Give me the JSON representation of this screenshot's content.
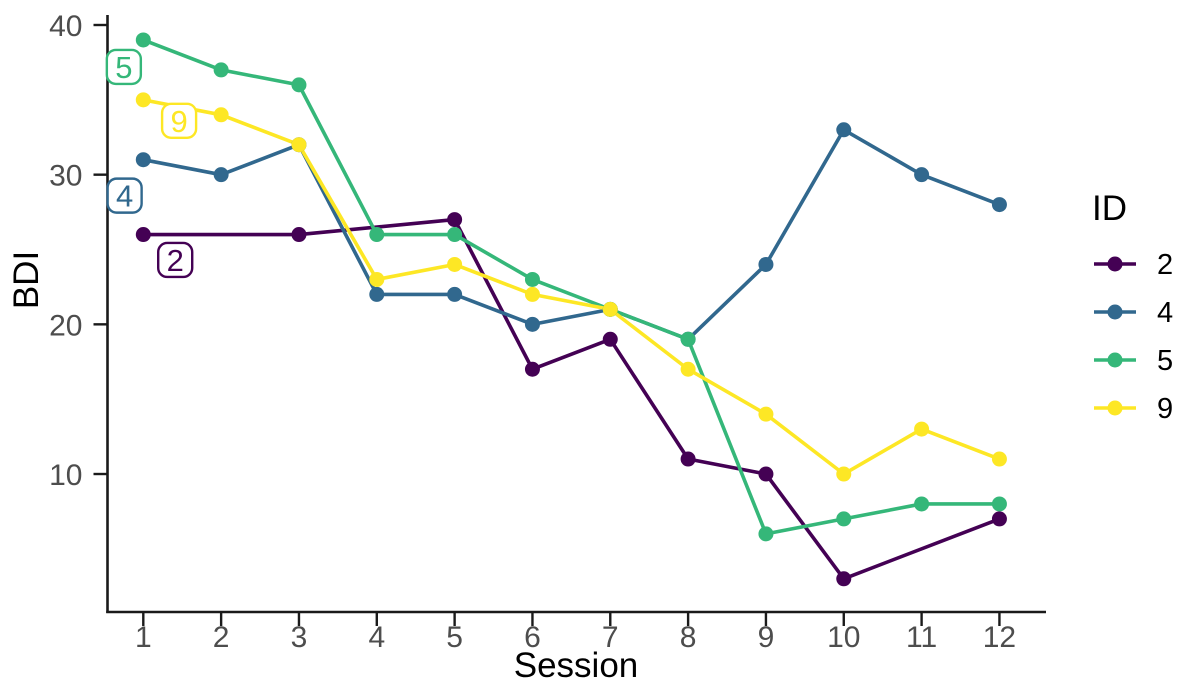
{
  "chart_data": {
    "type": "line",
    "xlabel": "Session",
    "ylabel": "BDI",
    "x_ticks": [
      1,
      2,
      3,
      4,
      5,
      6,
      7,
      8,
      9,
      10,
      11,
      12
    ],
    "y_ticks": [
      10,
      20,
      30,
      40
    ],
    "xlim": [
      0.54,
      12.6
    ],
    "ylim": [
      0.8,
      40.7
    ],
    "grid": false,
    "background": "#ffffff",
    "axis_color": "#1a1a1a",
    "tick_label_color": "#4d4d4d",
    "legend": {
      "title": "ID",
      "position": "right",
      "entries": [
        "2",
        "4",
        "5",
        "9"
      ]
    },
    "series": [
      {
        "id": "2",
        "color": "#440154",
        "points": [
          [
            1,
            26
          ],
          [
            3,
            26
          ],
          [
            5,
            27
          ],
          [
            6,
            17
          ],
          [
            7,
            19
          ],
          [
            8,
            11
          ],
          [
            9,
            10
          ],
          [
            10,
            3
          ],
          [
            12,
            7
          ]
        ]
      },
      {
        "id": "4",
        "color": "#31688E",
        "points": [
          [
            1,
            31
          ],
          [
            2,
            30
          ],
          [
            3,
            32
          ],
          [
            4,
            22
          ],
          [
            5,
            22
          ],
          [
            6,
            20
          ],
          [
            7,
            21
          ],
          [
            8,
            19
          ],
          [
            9,
            24
          ],
          [
            10,
            33
          ],
          [
            11,
            30
          ],
          [
            12,
            28
          ]
        ]
      },
      {
        "id": "5",
        "color": "#35B779",
        "points": [
          [
            1,
            39
          ],
          [
            2,
            37
          ],
          [
            3,
            36
          ],
          [
            4,
            26
          ],
          [
            5,
            26
          ],
          [
            6,
            23
          ],
          [
            7,
            21
          ],
          [
            8,
            19
          ],
          [
            9,
            6
          ],
          [
            10,
            7
          ],
          [
            11,
            8
          ],
          [
            12,
            8
          ]
        ]
      },
      {
        "id": "9",
        "color": "#FDE725",
        "points": [
          [
            1,
            35
          ],
          [
            2,
            34
          ],
          [
            3,
            32
          ],
          [
            4,
            23
          ],
          [
            5,
            24
          ],
          [
            6,
            22
          ],
          [
            7,
            21
          ],
          [
            8,
            17
          ],
          [
            9,
            14
          ],
          [
            10,
            10
          ],
          [
            11,
            13
          ],
          [
            12,
            11
          ]
        ]
      }
    ],
    "series_labels": [
      {
        "text": "5",
        "x": 0.75,
        "y": 37.2
      },
      {
        "text": "9",
        "x": 1.46,
        "y": 33.6
      },
      {
        "text": "4",
        "x": 0.76,
        "y": 28.6
      },
      {
        "text": "2",
        "x": 1.41,
        "y": 24.3
      }
    ]
  }
}
